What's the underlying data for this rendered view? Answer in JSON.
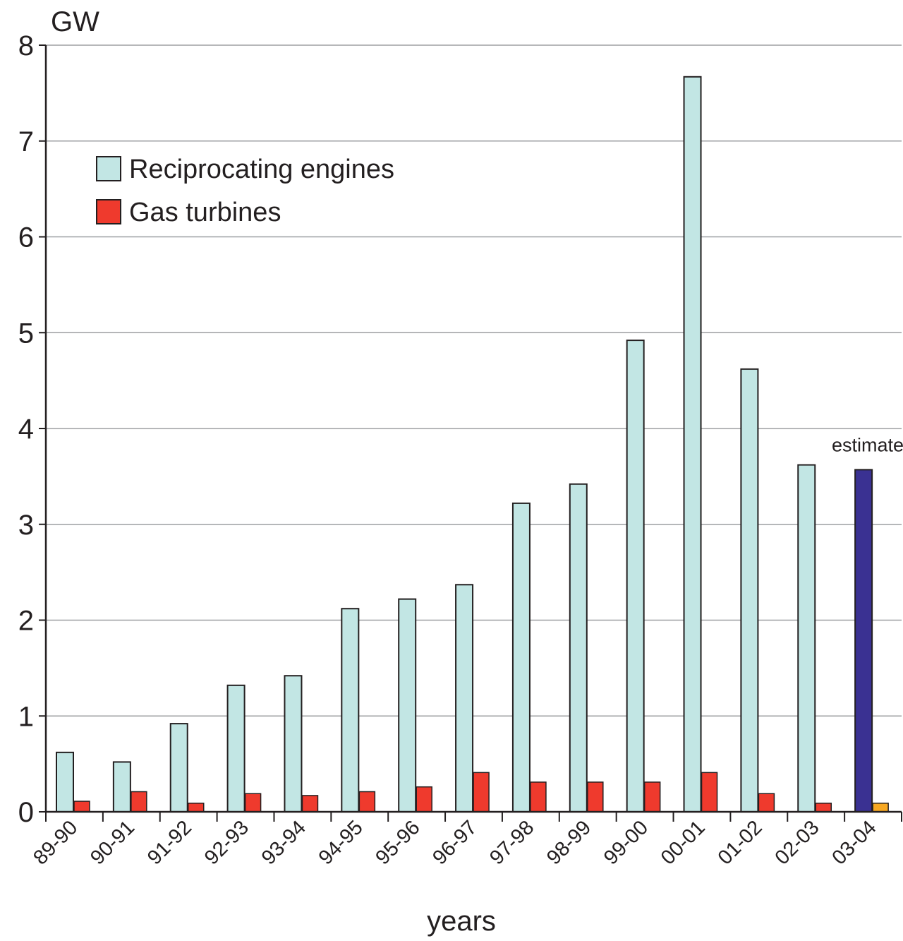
{
  "chart_data": {
    "type": "bar",
    "ylabel": "GW",
    "xlabel": "years",
    "ylim": [
      0,
      8
    ],
    "yticks": [
      0,
      1,
      2,
      3,
      4,
      5,
      6,
      7,
      8
    ],
    "grid": true,
    "legend_position": "top-left",
    "categories": [
      "89-90",
      "90-91",
      "91-92",
      "92-93",
      "93-94",
      "94-95",
      "95-96",
      "96-97",
      "97-98",
      "98-99",
      "99-00",
      "00-01",
      "01-02",
      "02-03",
      "03-04"
    ],
    "series": [
      {
        "name": "Reciprocating engines",
        "color": "#c2e6e4",
        "values": [
          0.62,
          0.52,
          0.92,
          1.32,
          1.42,
          2.12,
          2.22,
          2.37,
          3.22,
          3.42,
          4.92,
          7.67,
          4.62,
          3.62,
          3.57
        ]
      },
      {
        "name": "Gas turbines",
        "color": "#ef3a2d",
        "values": [
          0.11,
          0.21,
          0.09,
          0.19,
          0.17,
          0.21,
          0.26,
          0.41,
          0.31,
          0.31,
          0.31,
          0.41,
          0.19,
          0.09,
          0.09
        ]
      }
    ],
    "estimate": {
      "category": "03-04",
      "label": "estimate",
      "colors": [
        "#3a3192",
        "#f7a823"
      ]
    }
  }
}
